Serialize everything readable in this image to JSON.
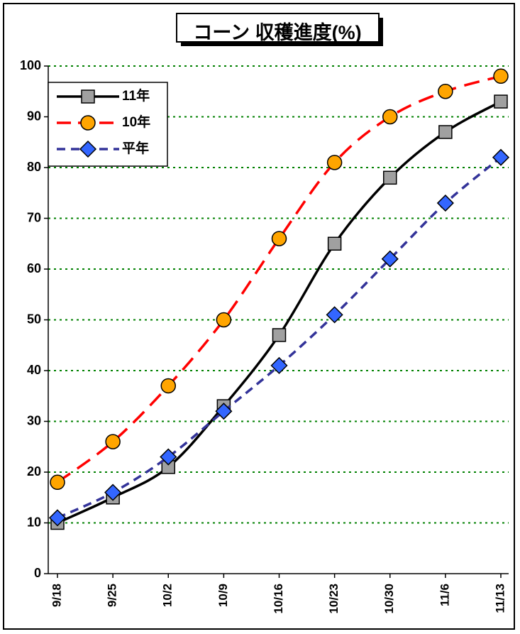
{
  "chart_data": {
    "type": "line",
    "title": "コーン 収穫進度(%)",
    "categories": [
      "9/18",
      "9/25",
      "10/2",
      "10/9",
      "10/16",
      "10/23",
      "10/30",
      "11/6",
      "11/13"
    ],
    "ylim": [
      0,
      100
    ],
    "yticks": [
      0,
      10,
      20,
      30,
      40,
      50,
      60,
      70,
      80,
      90,
      100
    ],
    "grid": "horizontal dotted green",
    "legend_position": "top-left",
    "series": [
      {
        "name": "11年",
        "values": [
          10,
          15,
          21,
          33,
          47,
          65,
          78,
          87,
          93
        ],
        "color": "#000000",
        "marker": "square",
        "marker_fill": "#a0a0a0",
        "dash": "solid"
      },
      {
        "name": "10年",
        "values": [
          18,
          26,
          37,
          50,
          66,
          81,
          90,
          95,
          98
        ],
        "color": "#ff0000",
        "marker": "circle",
        "marker_fill": "#ffa500",
        "dash": "long-dash"
      },
      {
        "name": "平年",
        "values": [
          11,
          16,
          23,
          32,
          41,
          51,
          62,
          73,
          82
        ],
        "color": "#333399",
        "marker": "diamond",
        "marker_fill": "#3366ff",
        "dash": "dash"
      }
    ],
    "gridline_color": "#008000"
  }
}
